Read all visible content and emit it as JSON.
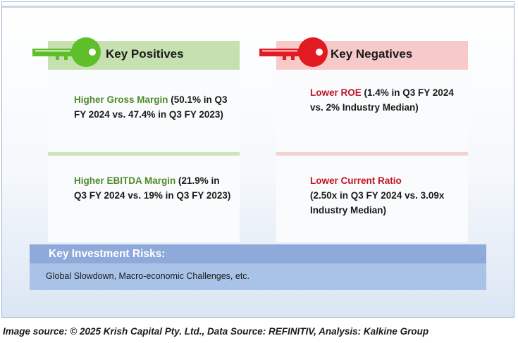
{
  "positives": {
    "title": "Key Positives",
    "items": [
      {
        "highlight": "Higher Gross Margin",
        "detail": " (50.1% in Q3 FY 2024 vs. 47.4% in Q3 FY 2023)"
      },
      {
        "highlight": "Higher EBITDA Margin",
        "detail": " (21.9% in Q3 FY 2024 vs. 19% in Q3 FY 2023)"
      }
    ]
  },
  "negatives": {
    "title": "Key Negatives",
    "items": [
      {
        "highlight": "Lower ROE",
        "detail": " (1.4% in Q3 FY 2024 vs. 2% Industry Median)"
      },
      {
        "highlight": "Lower Current Ratio",
        "detail": "(2.50x in Q3 FY 2024 vs. 3.09x Industry Median)"
      }
    ]
  },
  "risks": {
    "title": "Key Investment Risks:",
    "body": "Global Slowdown, Macro-economic Challenges, etc."
  },
  "caption": "Image source: © 2025 Krish Capital Pty. Ltd., Data Source: REFINITIV, Analysis: Kalkine Group",
  "colors": {
    "positive_key": "#5fbf2a",
    "negative_key": "#e21b23",
    "positive_text": "#4f8a2b",
    "negative_text": "#c0152a",
    "risk_header": "#8eaadb",
    "risk_body": "#a9c3e8"
  },
  "icons": {
    "positive": "key-icon",
    "negative": "key-icon"
  }
}
